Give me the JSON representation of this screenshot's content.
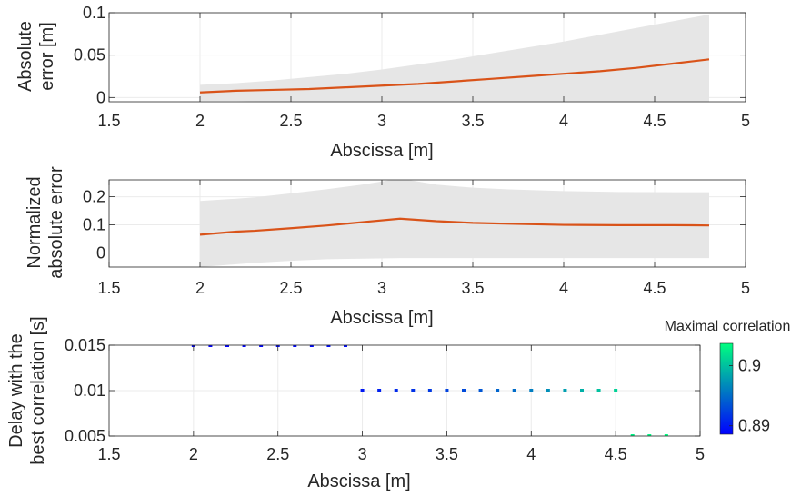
{
  "chart_data": [
    {
      "type": "area",
      "xlabel": "Abscissa [m]",
      "ylabel": [
        "Absolute",
        "error [m]"
      ],
      "xlim": [
        1.5,
        5
      ],
      "ylim": [
        -0.005,
        0.1
      ],
      "xticks": [
        "1.5",
        "2",
        "2.5",
        "3",
        "3.5",
        "4",
        "4.5",
        "5"
      ],
      "yticks": [
        "0",
        "0.05",
        "0.1"
      ],
      "grid": true,
      "colors": {
        "line": "#d95319",
        "band": "#e6e6e6"
      },
      "series": [
        {
          "values_x": [
            2.0,
            2.2,
            2.4,
            2.6,
            2.8,
            3.0,
            3.2,
            3.4,
            3.6,
            3.8,
            4.0,
            4.2,
            4.4,
            4.6,
            4.8
          ],
          "mean": [
            0.006,
            0.008,
            0.009,
            0.01,
            0.012,
            0.014,
            0.016,
            0.019,
            0.022,
            0.025,
            0.028,
            0.031,
            0.035,
            0.04,
            0.045
          ],
          "lower": [
            -0.004,
            -0.004,
            -0.005,
            -0.005,
            -0.005,
            -0.005,
            -0.005,
            -0.005,
            -0.005,
            -0.005,
            -0.005,
            -0.005,
            -0.005,
            -0.005,
            -0.005
          ],
          "upper": [
            0.015,
            0.017,
            0.02,
            0.024,
            0.028,
            0.033,
            0.039,
            0.045,
            0.052,
            0.059,
            0.066,
            0.074,
            0.082,
            0.09,
            0.098
          ]
        }
      ]
    },
    {
      "type": "area",
      "xlabel": "Abscissa [m]",
      "ylabel": [
        "Normalized",
        "absolute error"
      ],
      "xlim": [
        1.5,
        5
      ],
      "ylim": [
        -0.05,
        0.26
      ],
      "xticks": [
        "1.5",
        "2",
        "2.5",
        "3",
        "3.5",
        "4",
        "4.5",
        "5"
      ],
      "yticks": [
        "0",
        "0.1",
        "0.2"
      ],
      "grid": true,
      "colors": {
        "line": "#d95319",
        "band": "#e6e6e6"
      },
      "series": [
        {
          "values_x": [
            2.0,
            2.2,
            2.3,
            2.5,
            2.7,
            2.9,
            3.1,
            3.3,
            3.5,
            3.7,
            4.0,
            4.3,
            4.6,
            4.8
          ],
          "mean": [
            0.065,
            0.076,
            0.079,
            0.088,
            0.098,
            0.11,
            0.122,
            0.113,
            0.107,
            0.104,
            0.1,
            0.099,
            0.099,
            0.098
          ],
          "lower": [
            -0.05,
            -0.04,
            -0.035,
            -0.028,
            -0.022,
            -0.02,
            -0.018,
            -0.018,
            -0.018,
            -0.018,
            -0.018,
            -0.018,
            -0.018,
            -0.018
          ],
          "upper": [
            0.185,
            0.193,
            0.198,
            0.212,
            0.227,
            0.244,
            0.265,
            0.243,
            0.232,
            0.226,
            0.22,
            0.217,
            0.216,
            0.216
          ]
        }
      ]
    },
    {
      "type": "scatter",
      "xlabel": "Abscissa [m]",
      "ylabel": [
        "Delay with the",
        "best correlation [s]"
      ],
      "xlim": [
        1.5,
        5
      ],
      "ylim": [
        0.005,
        0.015
      ],
      "xticks": [
        "1.5",
        "2",
        "2.5",
        "3",
        "3.5",
        "4",
        "4.5",
        "5"
      ],
      "yticks": [
        "0.005",
        "0.01",
        "0.015"
      ],
      "grid": true,
      "colorbar": {
        "title": "Maximal correlation",
        "ticks": [
          "0.89",
          "0.9"
        ],
        "tick_values": [
          0.89,
          0.9
        ],
        "range": [
          0.8886,
          0.9037
        ],
        "colormap": "winter"
      },
      "series": [
        {
          "x": [
            2.0,
            2.1,
            2.2,
            2.3,
            2.4,
            2.5,
            2.6,
            2.7,
            2.8,
            2.9,
            3.0,
            3.1,
            3.2,
            3.3,
            3.4,
            3.5,
            3.6,
            3.7,
            3.8,
            3.9,
            4.0,
            4.1,
            4.2,
            4.3,
            4.4,
            4.5,
            4.6,
            4.7,
            4.8
          ],
          "y": [
            0.015,
            0.015,
            0.015,
            0.015,
            0.015,
            0.015,
            0.015,
            0.015,
            0.015,
            0.015,
            0.01,
            0.01,
            0.01,
            0.01,
            0.01,
            0.01,
            0.01,
            0.01,
            0.01,
            0.01,
            0.01,
            0.01,
            0.01,
            0.01,
            0.01,
            0.01,
            0.005,
            0.005,
            0.005
          ],
          "correlation": [
            0.8886,
            0.8887,
            0.8888,
            0.8889,
            0.889,
            0.889,
            0.8891,
            0.8892,
            0.8893,
            0.8893,
            0.89,
            0.8905,
            0.891,
            0.8915,
            0.892,
            0.8925,
            0.893,
            0.8937,
            0.8945,
            0.895,
            0.896,
            0.897,
            0.898,
            0.899,
            0.9,
            0.901,
            0.903,
            0.9033,
            0.9036
          ]
        }
      ]
    }
  ]
}
